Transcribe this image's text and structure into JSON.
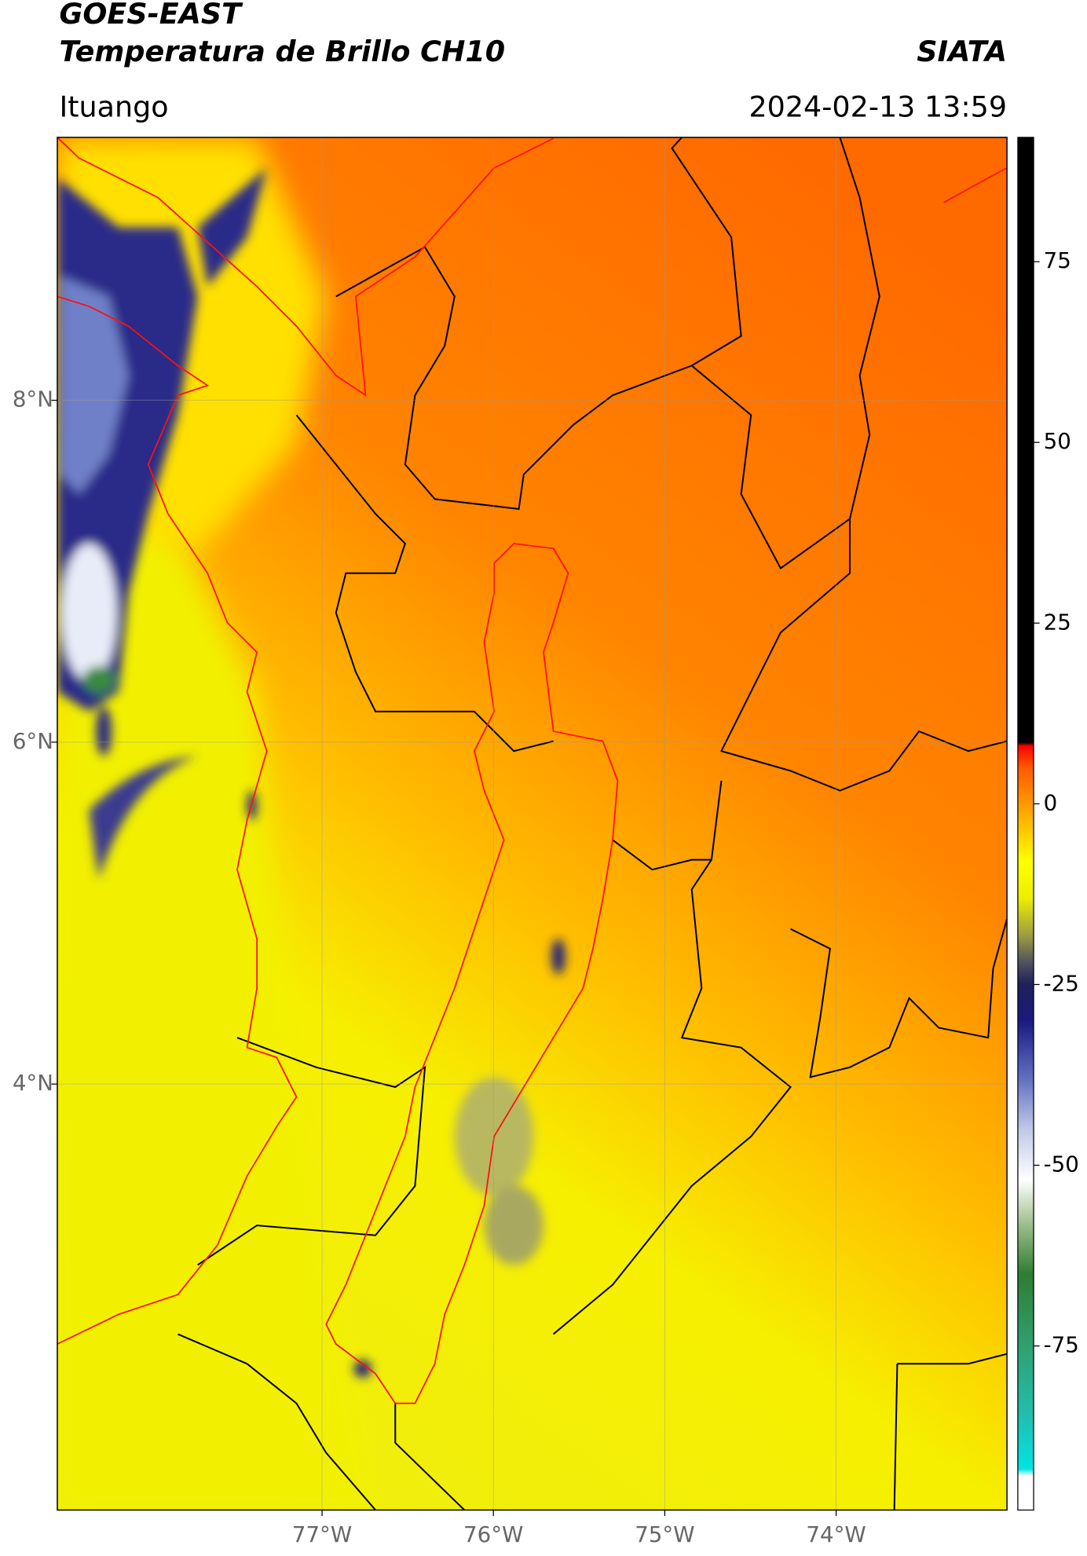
{
  "header": {
    "title": "GOES-EAST",
    "subtitle": "Temperatura de Brillo CH10",
    "source": "SIATA",
    "location": "Ituango",
    "datetime": "2024-02-13 13:59"
  },
  "map": {
    "xlim": [
      -78.545,
      -73.003
    ],
    "ylim": [
      1.508,
      9.538
    ],
    "grid": true,
    "xticks": [
      {
        "value": -77,
        "label": "77°W"
      },
      {
        "value": -76,
        "label": "76°W"
      },
      {
        "value": -75,
        "label": "75°W"
      },
      {
        "value": -74,
        "label": "74°W"
      }
    ],
    "yticks": [
      {
        "value": 8,
        "label": "8°N"
      },
      {
        "value": 6,
        "label": "6°N"
      },
      {
        "value": 4,
        "label": "4°N"
      }
    ]
  },
  "colorbar": {
    "clim": [
      -97.7,
      92.2
    ],
    "ticks": [
      75,
      50,
      25,
      0,
      -25,
      -50,
      -75
    ],
    "colormap": [
      {
        "value": 92.2,
        "color": "#000000"
      },
      {
        "value": 8.5,
        "color": "#000000"
      },
      {
        "value": 8,
        "color": "#ff0000"
      },
      {
        "value": 5,
        "color": "#ff5a00"
      },
      {
        "value": 0,
        "color": "#ff9900"
      },
      {
        "value": -3,
        "color": "#ffc000"
      },
      {
        "value": -8,
        "color": "#ffff00"
      },
      {
        "value": -13,
        "color": "#eeee00"
      },
      {
        "value": -18,
        "color": "#a0a040"
      },
      {
        "value": -22,
        "color": "#505060"
      },
      {
        "value": -25,
        "color": "#20205a"
      },
      {
        "value": -30,
        "color": "#1a1a80"
      },
      {
        "value": -38,
        "color": "#6070c0"
      },
      {
        "value": -45,
        "color": "#c0c8e8"
      },
      {
        "value": -52,
        "color": "#ffffff"
      },
      {
        "value": -58,
        "color": "#a0c090"
      },
      {
        "value": -65,
        "color": "#2e7d32"
      },
      {
        "value": -75,
        "color": "#30a070"
      },
      {
        "value": -85,
        "color": "#20c0b0"
      },
      {
        "value": -92,
        "color": "#00e5e5"
      },
      {
        "value": -93,
        "color": "#ffffff"
      },
      {
        "value": -97.7,
        "color": "#ffffff"
      }
    ]
  }
}
